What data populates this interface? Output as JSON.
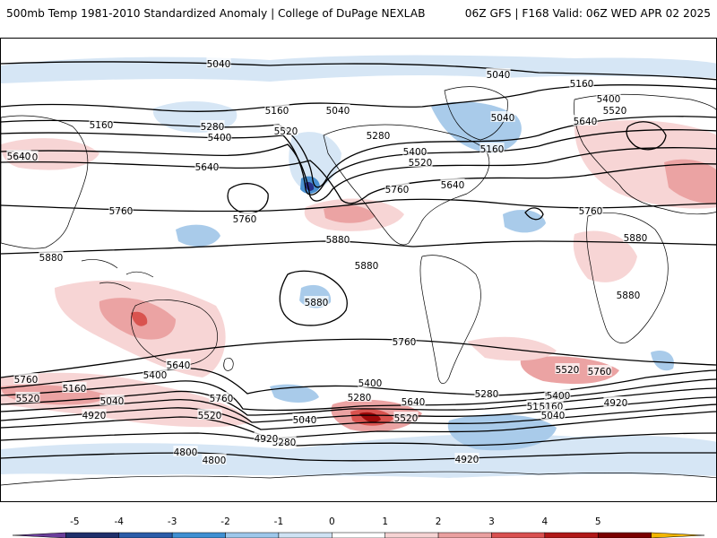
{
  "header": {
    "title_left": "500mb Temp 1981-2010 Standardized Anomaly | College of DuPage NEXLAB",
    "title_right": "06Z GFS | F168 Valid: 06Z WED APR 02 2025"
  },
  "contour_labels": [
    "5040",
    "5040",
    "5160",
    "5160",
    "5040",
    "5040",
    "5400",
    "5520",
    "5640",
    "5160",
    "5280",
    "5400",
    "5520",
    "5280",
    "5400",
    "5520",
    "5640",
    "5160",
    "5640",
    "5520",
    "5640",
    "5760",
    "5760",
    "5760",
    "5760",
    "5880",
    "5880",
    "5880",
    "5880",
    "5880",
    "5880",
    "5760",
    "5640",
    "5760",
    "5400",
    "5520",
    "5280",
    "5160",
    "5040",
    "4920",
    "5400",
    "5760",
    "5520",
    "5160",
    "5280",
    "5400",
    "5640",
    "5520",
    "5040",
    "4920",
    "4800",
    "4800",
    "4920",
    "5520",
    "5760",
    "5640",
    "5280",
    "5400",
    "5160",
    "5040",
    "4920"
  ],
  "colorbar": {
    "ticks": [
      "-5",
      "-4",
      "-3",
      "-2",
      "-1",
      "0",
      "1",
      "2",
      "3",
      "4",
      "5"
    ],
    "colors": [
      "#6a3d9a",
      "#1f2f6b",
      "#2b5ca8",
      "#3f8fd2",
      "#9ec7ea",
      "#cfe2f3",
      "#ffffff",
      "#f6d3d3",
      "#eaa0a0",
      "#d95050",
      "#b01818",
      "#7a0000",
      "#f2b600"
    ]
  },
  "anomaly_colors": {
    "light_red": "#f7d5d5",
    "mid_red": "#eba3a3",
    "red": "#d9534f",
    "dark_red": "#9e0a0a",
    "light_blue": "#d6e6f5",
    "mid_blue": "#a9cbea",
    "blue": "#4a90d0",
    "dark_blue": "#27308a"
  }
}
